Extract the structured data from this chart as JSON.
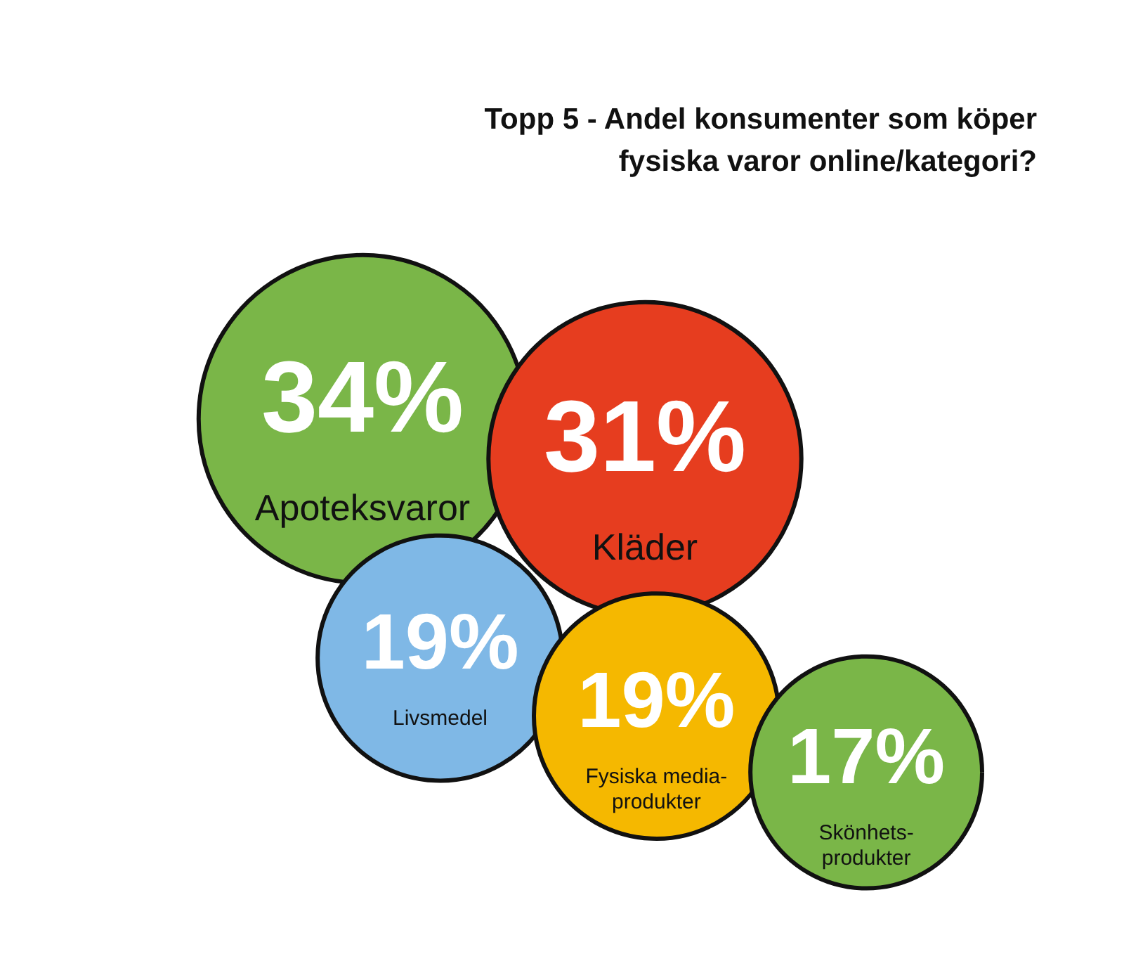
{
  "chart_data": {
    "type": "other",
    "title": "Topp 5 - Andel konsumenter som köper\nfysiska varor online/kategori?",
    "categories": [
      "Apoteksvaror",
      "Kläder",
      "Livsmedel",
      "Fysiska media-\nprodukter",
      "Skönhets-\nprodukter"
    ],
    "values": [
      34,
      31,
      19,
      19,
      17
    ],
    "value_labels": [
      "34%",
      "31%",
      "19%",
      "19%",
      "17%"
    ],
    "colors": [
      "#7ab648",
      "#e63d1f",
      "#7fb8e6",
      "#f5b800",
      "#7ab648"
    ]
  }
}
